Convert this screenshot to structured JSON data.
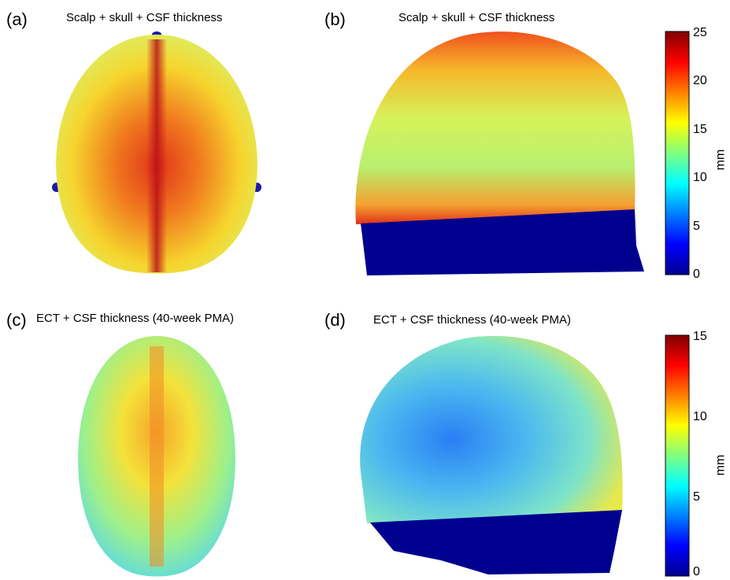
{
  "panels": [
    {
      "label": "(a)",
      "title": "Scalp + skull + CSF thickness"
    },
    {
      "label": "(b)",
      "title": "Scalp + skull + CSF thickness"
    },
    {
      "label": "(c)",
      "title": "ECT + CSF thickness (40-week PMA)"
    },
    {
      "label": "(d)",
      "title": "ECT + CSF thickness (40-week PMA)"
    }
  ],
  "colorbar_top": {
    "ticks": [
      "25",
      "20",
      "15",
      "10",
      "5",
      "0"
    ],
    "unit": "mm",
    "range": [
      0,
      25
    ]
  },
  "colorbar_bottom": {
    "ticks": [
      "15",
      "10",
      "5",
      "0"
    ],
    "unit": "mm",
    "range": [
      0,
      15
    ]
  },
  "colormap": "jet"
}
